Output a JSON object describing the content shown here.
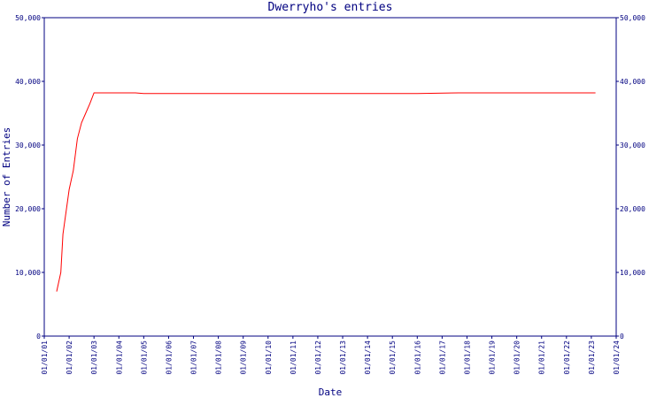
{
  "chart_data": {
    "type": "line",
    "title": "Dwerryho's entries",
    "xlabel": "Date",
    "ylabel": "Number of Entries",
    "ylim": [
      0,
      50000
    ],
    "y_ticks": [
      0,
      10000,
      20000,
      30000,
      40000,
      50000
    ],
    "y_tick_labels": [
      "0",
      "10,000",
      "20,000",
      "30,000",
      "40,000",
      "50,000"
    ],
    "x_tick_labels": [
      "01/01/01",
      "01/01/02",
      "01/01/03",
      "01/01/04",
      "01/01/05",
      "01/01/06",
      "01/01/07",
      "01/01/08",
      "01/01/09",
      "01/01/10",
      "01/01/11",
      "01/01/12",
      "01/01/13",
      "01/01/14",
      "01/01/15",
      "01/01/16",
      "01/01/17",
      "01/01/18",
      "01/01/19",
      "01/01/20",
      "01/01/21",
      "01/01/22",
      "01/01/23",
      "01/01/24"
    ],
    "grid": false,
    "line_color": "#ff0000",
    "axis_color": "#000080",
    "series": [
      {
        "x": [
          "2001-07-01",
          "2001-09-01",
          "2001-10-01",
          "2002-01-01",
          "2002-03-01",
          "2002-05-01",
          "2002-07-01",
          "2002-09-01",
          "2002-11-01",
          "2003-01-01",
          "2003-06-01",
          "2004-01-01",
          "2004-09-01",
          "2005-01-01",
          "2006-01-01",
          "2008-01-01",
          "2010-01-01",
          "2012-01-01",
          "2014-01-01",
          "2016-01-01",
          "2017-09-01",
          "2018-01-01",
          "2020-01-01",
          "2022-01-01",
          "2023-01-01",
          "2023-03-01"
        ],
        "y": [
          7000,
          10000,
          16000,
          23000,
          26000,
          31000,
          33500,
          35000,
          36500,
          38200,
          38200,
          38200,
          38200,
          38100,
          38100,
          38100,
          38100,
          38100,
          38100,
          38100,
          38200,
          38200,
          38200,
          38200,
          38200,
          38200
        ]
      }
    ]
  }
}
